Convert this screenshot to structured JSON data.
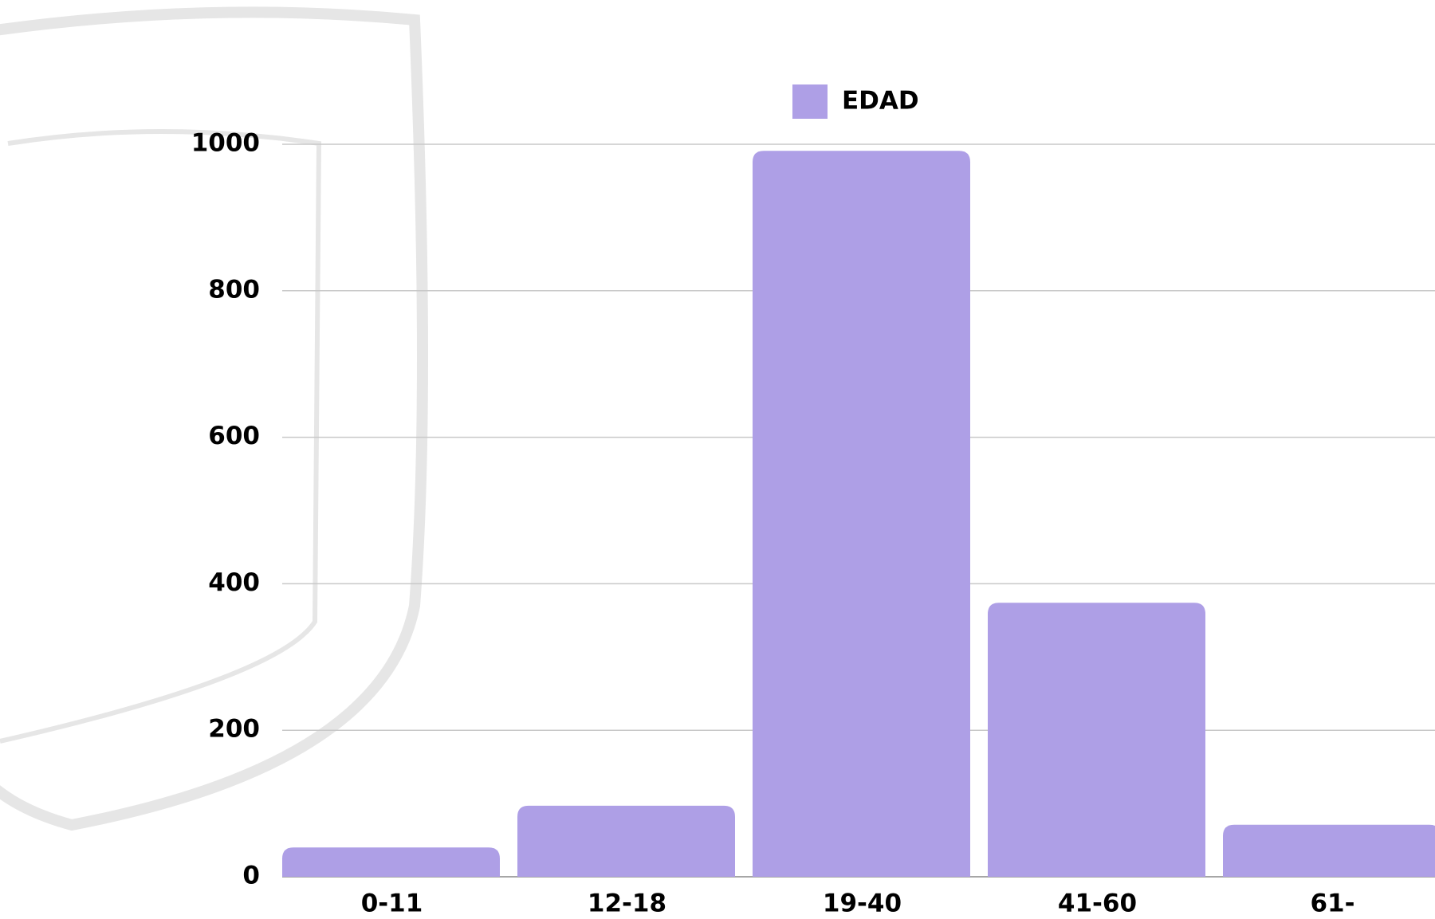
{
  "chart_data": {
    "type": "bar",
    "legend": "EDAD",
    "legend_position": "top",
    "categories": [
      "0-11",
      "12-18",
      "19-40",
      "41-60",
      "61-"
    ],
    "series": [
      {
        "name": "EDAD",
        "color": "#ae9fe6",
        "values": [
          40,
          97,
          991,
          374,
          71
        ]
      }
    ],
    "ylim": [
      0,
      1000
    ],
    "yticks": [
      0,
      200,
      400,
      600,
      800,
      1000
    ],
    "grid": true
  }
}
